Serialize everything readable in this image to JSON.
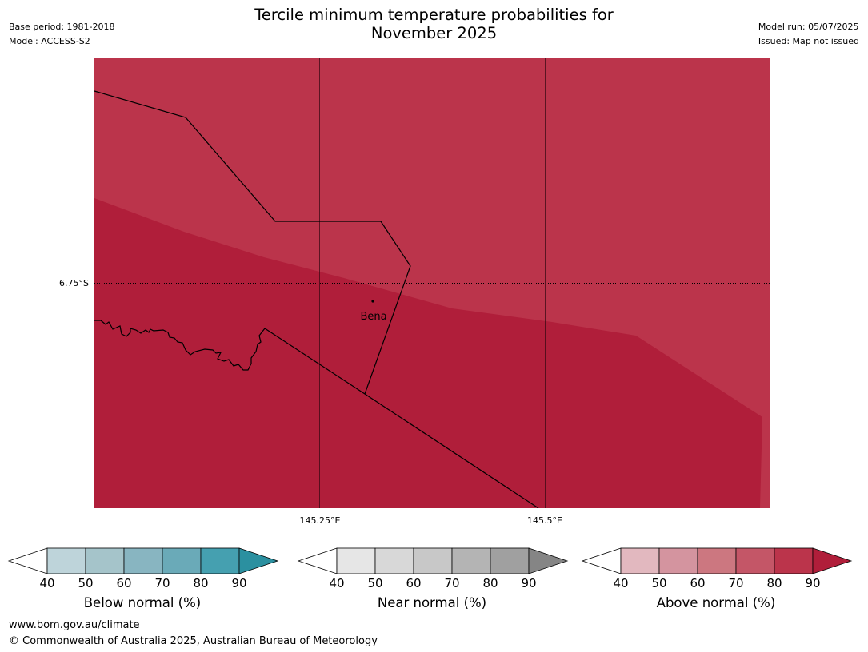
{
  "header": {
    "title": "Tercile minimum temperature probabilities for\nNovember 2025",
    "base_period": "Base period: 1981-2018",
    "model": "Model: ACCESS-S2",
    "model_run": "Model run: 05/07/2025",
    "issued": "Issued: Map not issued"
  },
  "map": {
    "lat_label": "6.75°S",
    "lon_labels": [
      "145.25°E",
      "145.5°E"
    ],
    "place_label": "Bena",
    "colors": {
      "above_80_90": "#bb344b",
      "above_90_plus": "#b01e3a"
    }
  },
  "colorbars": [
    {
      "name": "below",
      "label": "Below normal (%)",
      "ticks": [
        "40",
        "50",
        "60",
        "70",
        "80",
        "90"
      ],
      "colors": [
        "#ffffff",
        "#bed4da",
        "#a5c4ca",
        "#88b5c1",
        "#6aaab8",
        "#45a0b0",
        "#2b90a0"
      ]
    },
    {
      "name": "near",
      "label": "Near normal (%)",
      "ticks": [
        "40",
        "50",
        "60",
        "70",
        "80",
        "90"
      ],
      "colors": [
        "#ffffff",
        "#e6e6e6",
        "#d8d8d8",
        "#c8c8c8",
        "#b4b4b4",
        "#a0a0a0",
        "#858585"
      ]
    },
    {
      "name": "above",
      "label": "Above normal (%)",
      "ticks": [
        "40",
        "50",
        "60",
        "70",
        "80",
        "90"
      ],
      "colors": [
        "#ffffff",
        "#e2b8bf",
        "#d4949f",
        "#cc7780",
        "#c45667",
        "#bb344b",
        "#b01e3a"
      ]
    }
  ],
  "footer": {
    "url": "www.bom.gov.au/climate",
    "copyright": "© Commonwealth of Australia 2025, Australian Bureau of Meteorology"
  }
}
